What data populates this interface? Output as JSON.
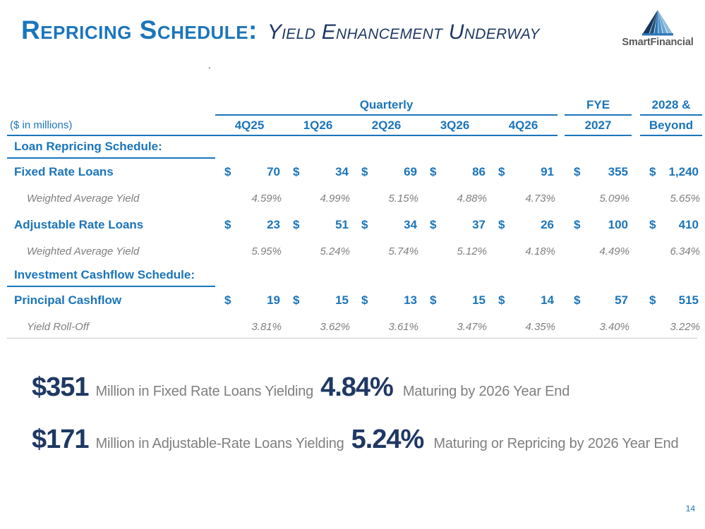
{
  "title": {
    "main": "Repricing Schedule:",
    "subtitle": "Yield Enhancement Underway"
  },
  "logo": {
    "name": "SmartFinancial"
  },
  "stray_dot": ".",
  "table": {
    "units_label": "($ in millions)",
    "currency_symbol": "$",
    "group_headers": {
      "quarterly": "Quarterly",
      "fye": "FYE",
      "beyond_top": "2028 &"
    },
    "columns": [
      "4Q25",
      "1Q26",
      "2Q26",
      "3Q26",
      "4Q26",
      "2027",
      "Beyond"
    ],
    "rows": [
      {
        "type": "section",
        "label": "Loan Repricing Schedule:"
      },
      {
        "type": "currency",
        "label": "Fixed Rate Loans",
        "values": [
          "70",
          "34",
          "69",
          "86",
          "91",
          "355",
          "1,240"
        ]
      },
      {
        "type": "percent",
        "label": "Weighted Average Yield",
        "values": [
          "4.59%",
          "4.99%",
          "5.15%",
          "4.88%",
          "4.73%",
          "5.09%",
          "5.65%"
        ]
      },
      {
        "type": "currency",
        "label": "Adjustable Rate Loans",
        "values": [
          "23",
          "51",
          "34",
          "37",
          "26",
          "100",
          "410"
        ]
      },
      {
        "type": "percent",
        "label": "Weighted Average Yield",
        "values": [
          "5.95%",
          "5.24%",
          "5.74%",
          "5.12%",
          "4.18%",
          "4.49%",
          "6.34%"
        ]
      },
      {
        "type": "section",
        "label": "Investment Cashflow Schedule:"
      },
      {
        "type": "currency",
        "label": "Principal Cashflow",
        "values": [
          "19",
          "15",
          "13",
          "15",
          "14",
          "57",
          "515"
        ]
      },
      {
        "type": "percent",
        "label": "Yield Roll-Off",
        "values": [
          "3.81%",
          "3.62%",
          "3.61%",
          "3.47%",
          "4.35%",
          "3.40%",
          "3.22%"
        ]
      }
    ]
  },
  "callouts": [
    {
      "amount": "$351",
      "text1": "Million in Fixed Rate Loans Yielding",
      "rate": "4.84%",
      "text2": "Maturing by 2026 Year End"
    },
    {
      "amount": "$171",
      "text1": "Million in Adjustable-Rate Loans Yielding",
      "rate": "5.24%",
      "text2": "Maturing or Repricing by 2026 Year End"
    }
  ],
  "page_number": "14",
  "colors": {
    "accent_blue": "#1b75bb",
    "navy": "#1f3864",
    "gray_text": "#7f7f7f",
    "logo_gray": "#58595b"
  }
}
